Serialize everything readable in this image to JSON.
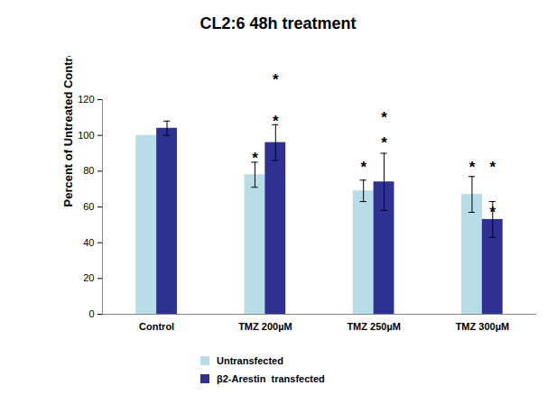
{
  "chart_data": {
    "type": "bar",
    "title": "CL2:6 48h treatment",
    "y_label": "Percent of Untreated Control",
    "categories": [
      "Control",
      "TMZ 200µM",
      "TMZ 250µM",
      "TMZ 300µM"
    ],
    "series": [
      {
        "name": "Untransfected",
        "color": "#b7dde8",
        "values": [
          100,
          78,
          69,
          67
        ],
        "errors": [
          0,
          7,
          6,
          10
        ]
      },
      {
        "name": "β2-Arestin  transfected",
        "color": "#2e3192",
        "values": [
          104,
          96,
          74,
          53
        ],
        "errors": [
          4,
          10,
          16,
          10
        ]
      }
    ],
    "annotations": [
      {
        "text": "*",
        "category": "TMZ 200µM",
        "series": "Untransfected",
        "y": 87
      },
      {
        "text": "*",
        "category": "TMZ 200µM",
        "series": "β2-Arestin  transfected",
        "y": 108
      },
      {
        "text": "*",
        "category": "TMZ 200µM",
        "series": "β2-Arestin  transfected",
        "y": 131
      },
      {
        "text": "*",
        "category": "TMZ 250µM",
        "series": "Untransfected",
        "y": 82
      },
      {
        "text": "*",
        "category": "TMZ 250µM",
        "series": "β2-Arestin  transfected",
        "y": 96
      },
      {
        "text": "*",
        "category": "TMZ 250µM",
        "series": "β2-Arestin  transfected",
        "y": 110
      },
      {
        "text": "*",
        "category": "TMZ 300µM",
        "series": "Untransfected",
        "y": 82
      },
      {
        "text": "*",
        "category": "TMZ 300µM",
        "series": "β2-Arestin  transfected",
        "y": 57
      },
      {
        "text": "*",
        "category": "TMZ 300µM",
        "series": "β2-Arestin  transfected",
        "y": 82
      }
    ],
    "ylim": [
      0,
      120
    ],
    "yticks": [
      0,
      20,
      40,
      60,
      80,
      100,
      120
    ],
    "grid": false,
    "legend": "bottom"
  }
}
